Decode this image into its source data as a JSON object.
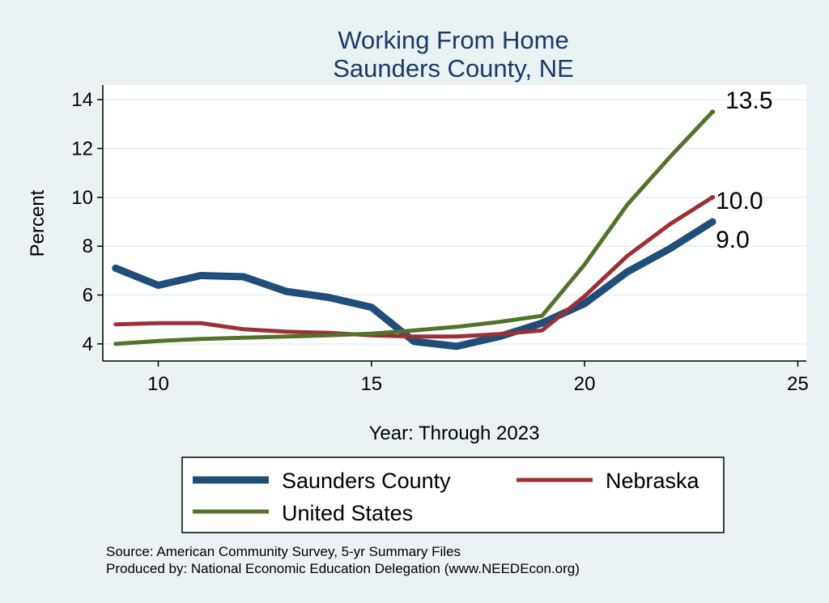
{
  "chart_data": {
    "type": "line",
    "title": "Working From Home",
    "subtitle": "Saunders County, NE",
    "xlabel": "Year: Through 2023",
    "ylabel": "Percent",
    "xlim": [
      8.7,
      25.2
    ],
    "ylim": [
      3.3,
      14.6
    ],
    "x_ticks": [
      10,
      15,
      20,
      25
    ],
    "y_ticks": [
      4,
      6,
      8,
      10,
      12,
      14
    ],
    "grid": true,
    "legend_position": "bottom",
    "x": [
      9,
      10,
      11,
      12,
      13,
      14,
      15,
      16,
      17,
      18,
      19,
      20,
      21,
      22,
      23
    ],
    "series": [
      {
        "name": "Saunders County",
        "color": "#1f4e79",
        "values": [
          7.1,
          6.4,
          6.8,
          6.75,
          6.15,
          5.9,
          5.5,
          4.1,
          3.9,
          4.3,
          4.85,
          5.65,
          6.95,
          7.9,
          9.0
        ],
        "end_label": "9.0"
      },
      {
        "name": "Nebraska",
        "color": "#9b3036",
        "values": [
          4.8,
          4.85,
          4.85,
          4.6,
          4.5,
          4.45,
          4.35,
          4.3,
          4.3,
          4.4,
          4.55,
          5.95,
          7.6,
          8.9,
          10.0
        ],
        "end_label": "10.0"
      },
      {
        "name": "United States",
        "color": "#53732b",
        "values": [
          4.0,
          4.12,
          4.2,
          4.25,
          4.3,
          4.35,
          4.42,
          4.55,
          4.7,
          4.9,
          5.15,
          7.25,
          9.7,
          11.65,
          13.5
        ],
        "end_label": "13.5"
      }
    ]
  },
  "footer": {
    "source": "Source: American Community Survey, 5-yr Summary Files",
    "produced_by": "Produced by: National Economic Education Delegation (www.NEEDEcon.org)"
  }
}
